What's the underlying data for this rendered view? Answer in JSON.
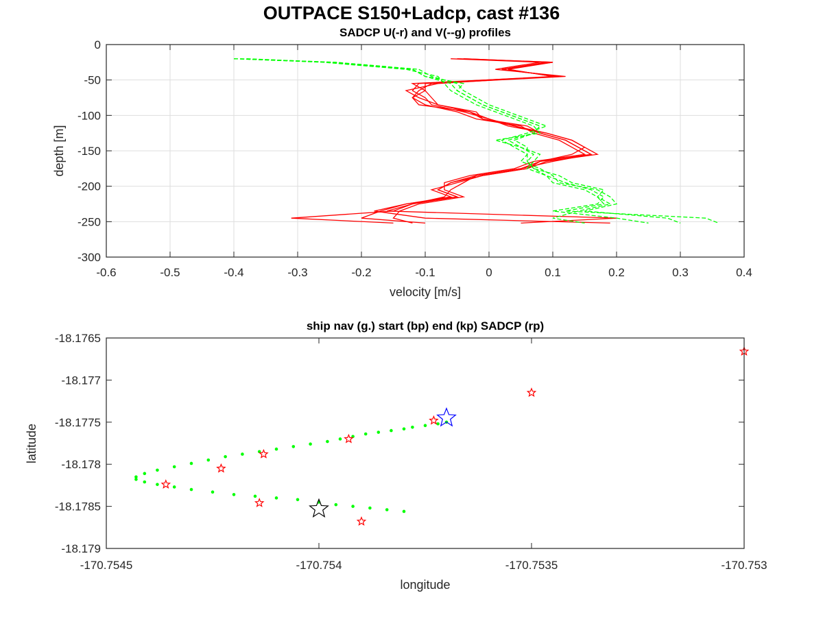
{
  "figure": {
    "title": "OUTPACE S150+Ladcp, cast #136"
  },
  "chart_data": [
    {
      "type": "line",
      "title": "SADCP U(-r) and V(--g) profiles",
      "xlabel": "velocity [m/s]",
      "ylabel": "depth [m]",
      "xlim": [
        -0.6,
        0.4
      ],
      "ylim": [
        -300,
        0
      ],
      "xticks": [
        "-0.6",
        "-0.5",
        "-0.4",
        "-0.3",
        "-0.2",
        "-0.1",
        "0",
        "0.1",
        "0.2",
        "0.3",
        "0.4"
      ],
      "yticks": [
        "0",
        "-50",
        "-100",
        "-150",
        "-200",
        "-250",
        "-300"
      ],
      "grid": true,
      "depth": [
        -20,
        -25,
        -35,
        -45,
        -55,
        -65,
        -75,
        -85,
        -95,
        -105,
        -115,
        -125,
        -135,
        -145,
        -155,
        -165,
        -175,
        -185,
        -195,
        -205,
        -215,
        -225,
        -235,
        -245,
        -252
      ],
      "series": [
        {
          "name": "U",
          "style": "solid",
          "color": "#ff0000",
          "profiles": [
            [
              -0.05,
              0.09,
              0.02,
              0.11,
              -0.1,
              -0.1,
              -0.09,
              -0.08,
              -0.03,
              -0.01,
              0.04,
              0.08,
              0.12,
              0.14,
              0.16,
              0.08,
              0.05,
              -0.02,
              -0.06,
              -0.08,
              -0.05,
              -0.12,
              -0.15,
              -0.31,
              -0.15
            ],
            [
              -0.04,
              0.1,
              0.03,
              0.1,
              -0.11,
              -0.12,
              -0.1,
              -0.09,
              -0.04,
              0.0,
              0.03,
              0.09,
              0.13,
              0.15,
              0.17,
              0.09,
              0.06,
              -0.01,
              -0.05,
              -0.09,
              -0.06,
              -0.13,
              -0.17,
              -0.2,
              -0.1
            ],
            [
              -0.06,
              0.08,
              0.01,
              0.12,
              -0.09,
              -0.11,
              -0.12,
              -0.1,
              -0.05,
              -0.02,
              0.05,
              0.07,
              0.11,
              0.13,
              0.15,
              0.07,
              0.04,
              -0.03,
              -0.07,
              -0.07,
              -0.04,
              -0.11,
              -0.14,
              -0.15,
              -0.12
            ],
            [
              -0.05,
              0.09,
              0.03,
              0.1,
              -0.08,
              -0.13,
              -0.11,
              -0.08,
              -0.02,
              -0.01,
              0.06,
              0.08,
              0.12,
              0.14,
              0.16,
              0.1,
              0.05,
              -0.02,
              -0.04,
              -0.06,
              -0.07,
              -0.12,
              -0.16,
              0.2,
              0.05
            ],
            [
              -0.04,
              0.1,
              0.02,
              0.11,
              -0.12,
              -0.1,
              -0.12,
              -0.11,
              -0.03,
              0.0,
              0.04,
              0.09,
              0.13,
              0.15,
              0.13,
              0.08,
              0.06,
              -0.01,
              -0.06,
              -0.08,
              -0.05,
              -0.13,
              -0.18,
              -0.1,
              0.19
            ]
          ]
        },
        {
          "name": "V",
          "style": "dashed",
          "color": "#00ff00",
          "profiles": [
            [
              -0.4,
              -0.25,
              -0.12,
              -0.1,
              -0.06,
              -0.05,
              -0.03,
              -0.01,
              0.02,
              0.05,
              0.08,
              0.07,
              0.03,
              0.05,
              0.07,
              0.06,
              0.07,
              0.09,
              0.1,
              0.15,
              0.17,
              0.18,
              0.12,
              0.34,
              0.36
            ],
            [
              -0.39,
              -0.24,
              -0.11,
              -0.09,
              -0.05,
              -0.04,
              -0.02,
              0.0,
              0.03,
              0.06,
              0.09,
              0.06,
              0.02,
              0.04,
              0.06,
              0.05,
              0.08,
              0.1,
              0.11,
              0.17,
              0.19,
              0.2,
              0.15,
              0.28,
              0.3
            ],
            [
              -0.4,
              -0.26,
              -0.13,
              -0.08,
              -0.07,
              -0.06,
              -0.04,
              -0.02,
              0.01,
              0.04,
              0.07,
              0.08,
              0.01,
              0.05,
              0.08,
              0.07,
              0.06,
              0.09,
              0.12,
              0.16,
              0.18,
              0.17,
              0.1,
              0.2,
              0.25
            ],
            [
              -0.38,
              -0.25,
              -0.12,
              -0.1,
              -0.04,
              -0.05,
              -0.03,
              -0.01,
              0.02,
              0.05,
              0.08,
              0.07,
              0.04,
              0.06,
              0.06,
              0.06,
              0.07,
              0.11,
              0.13,
              0.18,
              0.17,
              0.19,
              0.14,
              0.1,
              0.15
            ]
          ]
        }
      ]
    },
    {
      "type": "scatter",
      "title": "ship nav (g.) start (bp) end (kp) SADCP (rp)",
      "xlabel": "longitude",
      "ylabel": "latitude",
      "xlim": [
        -170.7545,
        -170.753
      ],
      "ylim": [
        -18.179,
        -18.1765
      ],
      "xticks": [
        "-170.7545",
        "-170.754",
        "-170.7535",
        "-170.753"
      ],
      "yticks": [
        "-18.1765",
        "-18.177",
        "-18.1775",
        "-18.178",
        "-18.1785",
        "-18.179"
      ],
      "grid": false,
      "nav_track": {
        "color": "#00ff00",
        "points": [
          [
            -170.7537,
            -18.1775
          ],
          [
            -170.75372,
            -18.17752
          ],
          [
            -170.75375,
            -18.17754
          ],
          [
            -170.75378,
            -18.17756
          ],
          [
            -170.7538,
            -18.17758
          ],
          [
            -170.75383,
            -18.1776
          ],
          [
            -170.75386,
            -18.17762
          ],
          [
            -170.75389,
            -18.17764
          ],
          [
            -170.75392,
            -18.17767
          ],
          [
            -170.75395,
            -18.1777
          ],
          [
            -170.75398,
            -18.17773
          ],
          [
            -170.75402,
            -18.17776
          ],
          [
            -170.75406,
            -18.17779
          ],
          [
            -170.7541,
            -18.17782
          ],
          [
            -170.75414,
            -18.17785
          ],
          [
            -170.75418,
            -18.17788
          ],
          [
            -170.75422,
            -18.17791
          ],
          [
            -170.75426,
            -18.17795
          ],
          [
            -170.7543,
            -18.17799
          ],
          [
            -170.75434,
            -18.17803
          ],
          [
            -170.75438,
            -18.17807
          ],
          [
            -170.75441,
            -18.17811
          ],
          [
            -170.75443,
            -18.17815
          ],
          [
            -170.75443,
            -18.17818
          ],
          [
            -170.75441,
            -18.17821
          ],
          [
            -170.75438,
            -18.17824
          ],
          [
            -170.75434,
            -18.17827
          ],
          [
            -170.7543,
            -18.1783
          ],
          [
            -170.75425,
            -18.17833
          ],
          [
            -170.7542,
            -18.17836
          ],
          [
            -170.75415,
            -18.17838
          ],
          [
            -170.7541,
            -18.1784
          ],
          [
            -170.75405,
            -18.17842
          ],
          [
            -170.754,
            -18.17845
          ],
          [
            -170.75396,
            -18.17848
          ],
          [
            -170.75392,
            -18.1785
          ],
          [
            -170.75388,
            -18.17852
          ],
          [
            -170.75384,
            -18.17854
          ],
          [
            -170.7538,
            -18.17856
          ]
        ]
      },
      "start_point": {
        "color": "#0000ff",
        "lon": -170.7537,
        "lat": -18.17745
      },
      "end_point": {
        "color": "#000000",
        "lon": -170.754,
        "lat": -18.17853
      },
      "sadcp_points": {
        "color": "#ff0000",
        "points": [
          [
            -170.753,
            -18.17666
          ],
          [
            -170.7535,
            -18.17715
          ],
          [
            -170.75373,
            -18.17748
          ],
          [
            -170.75393,
            -18.1777
          ],
          [
            -170.75413,
            -18.17788
          ],
          [
            -170.75423,
            -18.17805
          ],
          [
            -170.75436,
            -18.17824
          ],
          [
            -170.75414,
            -18.17846
          ],
          [
            -170.7539,
            -18.17868
          ]
        ]
      }
    }
  ]
}
